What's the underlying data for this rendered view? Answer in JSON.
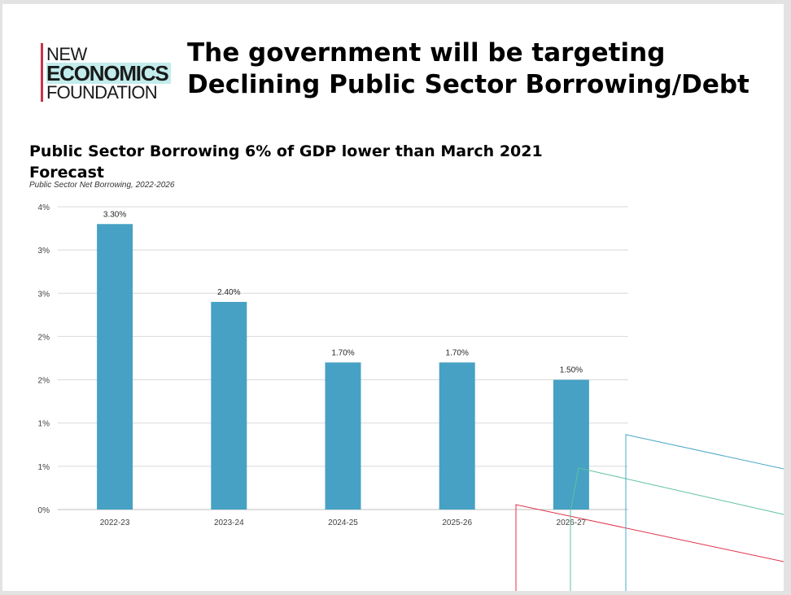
{
  "logo": {
    "line1": "NEW",
    "line2": "ECONOMICS",
    "line3": "FOUNDATION",
    "bar_color": "#c8334a",
    "highlight_color": "#c3ecec"
  },
  "header": {
    "title_line1": "The government will be targeting",
    "title_line2": "Declining Public Sector Borrowing/Debt"
  },
  "chart_data": {
    "type": "bar",
    "title": "Public Sector Borrowing 6% of GDP lower than March 2021 Forecast",
    "subtitle": "Public Sector Net Borrowing, 2022-2026",
    "categories": [
      "2022-23",
      "2023-24",
      "2024-25",
      "2025-26",
      "2026-27"
    ],
    "values": [
      3.3,
      2.4,
      1.7,
      1.7,
      1.5
    ],
    "data_labels": [
      "3.30%",
      "2.40%",
      "1.70%",
      "1.70%",
      "1.50%"
    ],
    "y_ticks": [
      "0%",
      "1%",
      "1%",
      "2%",
      "2%",
      "3%",
      "3%",
      "4%"
    ],
    "y_tick_values": [
      0,
      0.5,
      1.0,
      1.5,
      2.0,
      2.5,
      3.0,
      3.5
    ],
    "ylim": [
      0,
      3.5
    ],
    "bar_color": "#47a1c4",
    "grid": true,
    "legend": "none"
  }
}
